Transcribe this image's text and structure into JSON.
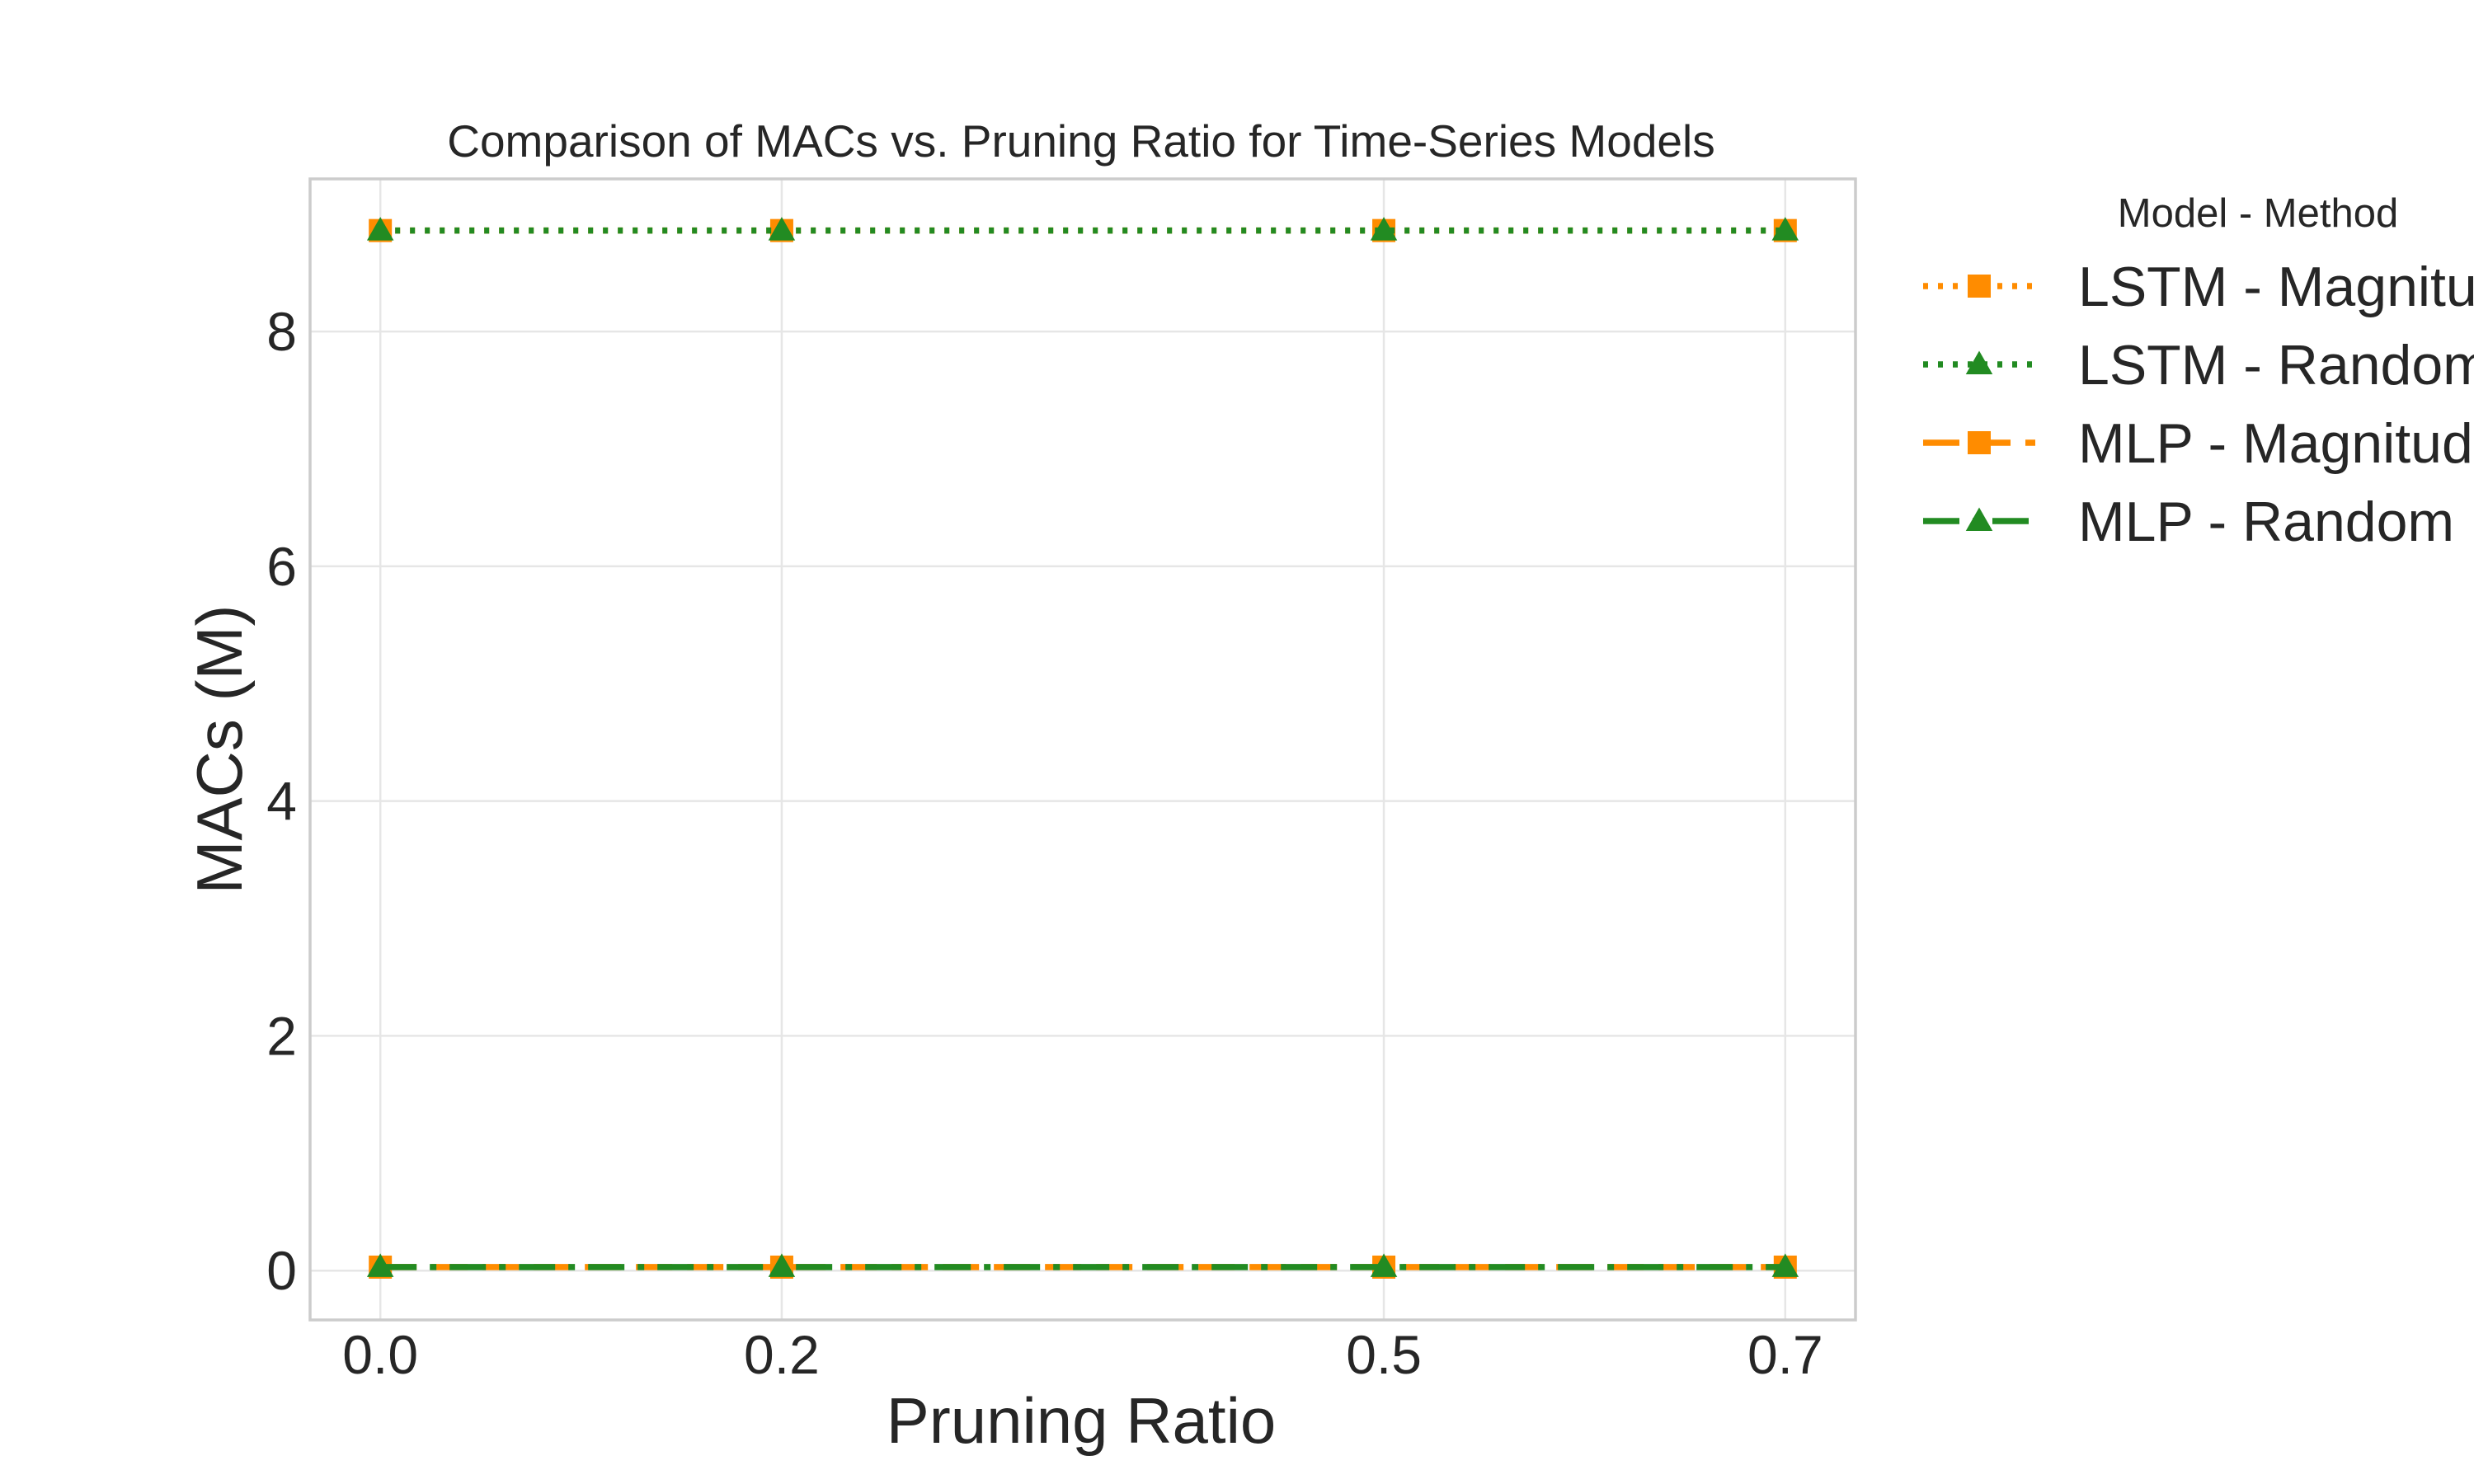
{
  "chart_data": {
    "type": "line",
    "title": "Comparison of MACs vs. Pruning Ratio for Time-Series Models",
    "xlabel": "Pruning Ratio",
    "ylabel": "MACs (M)",
    "x": [
      0.0,
      0.2,
      0.5,
      0.7
    ],
    "x_tick_labels": [
      "0.0",
      "0.2",
      "0.5",
      "0.7"
    ],
    "xlim": [
      -0.035,
      0.735
    ],
    "y_ticks": [
      0,
      2,
      4,
      6,
      8
    ],
    "y_tick_labels": [
      "0",
      "2",
      "4",
      "6",
      "8"
    ],
    "ylim": [
      -0.42,
      9.3
    ],
    "grid": true,
    "legend": {
      "title": "Model - Method",
      "placement": "outside right, top"
    },
    "series": [
      {
        "name": "LSTM - Magnitude",
        "values": [
          8.86,
          8.86,
          8.86,
          8.86
        ],
        "color": "#ff8c00",
        "line_style": "dotted",
        "marker": "square"
      },
      {
        "name": "LSTM - Random",
        "values": [
          8.86,
          8.86,
          8.86,
          8.86
        ],
        "color": "#228b22",
        "line_style": "dotted",
        "marker": "triangle"
      },
      {
        "name": "MLP - Magnitude",
        "values": [
          0.03,
          0.03,
          0.03,
          0.03
        ],
        "color": "#ff8c00",
        "line_style": "dashed",
        "marker": "square"
      },
      {
        "name": "MLP - Random",
        "values": [
          0.03,
          0.03,
          0.03,
          0.03
        ],
        "color": "#228b22",
        "line_style": "dashdot",
        "marker": "triangle"
      }
    ]
  }
}
